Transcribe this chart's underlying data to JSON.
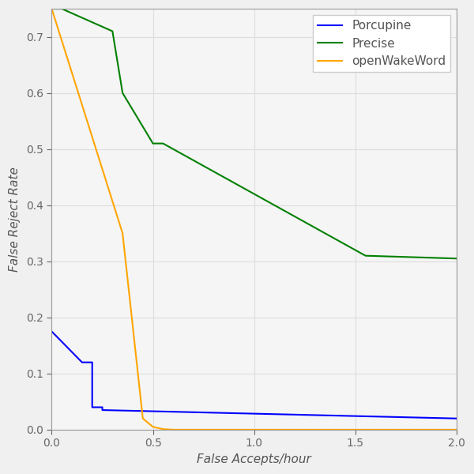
{
  "title": "",
  "xlabel": "False Accepts/hour",
  "ylabel": "False Reject Rate",
  "xlim": [
    0,
    2
  ],
  "ylim": [
    0,
    0.75
  ],
  "background_color": "#f0f0f0",
  "axes_color": "#f5f5f5",
  "grid_color": "#dddddd",
  "porcupine": {
    "label": "Porcupine",
    "color": "#0000ff",
    "x": [
      0.0,
      0.15,
      0.2,
      0.2,
      0.25,
      0.25,
      2.0
    ],
    "y": [
      0.175,
      0.12,
      0.12,
      0.04,
      0.04,
      0.035,
      0.02
    ]
  },
  "precise": {
    "label": "Precise",
    "color": "#008000",
    "x": [
      0.0,
      0.05,
      0.3,
      0.3,
      0.35,
      0.5,
      0.55,
      1.0,
      1.5,
      1.55,
      2.0
    ],
    "y": [
      0.75,
      0.75,
      0.71,
      0.71,
      0.6,
      0.51,
      0.51,
      0.42,
      0.32,
      0.31,
      0.305
    ]
  },
  "openwakeword": {
    "label": "openWakeWord",
    "color": "#ffa500",
    "x": [
      0.0,
      0.35,
      0.45,
      0.5,
      0.55,
      0.6,
      2.0
    ],
    "y": [
      0.75,
      0.35,
      0.02,
      0.005,
      0.001,
      0.0,
      0.0
    ]
  },
  "legend_loc": "upper right",
  "xticks": [
    0,
    0.5,
    1,
    1.5,
    2
  ],
  "yticks": [
    0.0,
    0.1,
    0.2,
    0.3,
    0.4,
    0.5,
    0.6,
    0.7
  ]
}
